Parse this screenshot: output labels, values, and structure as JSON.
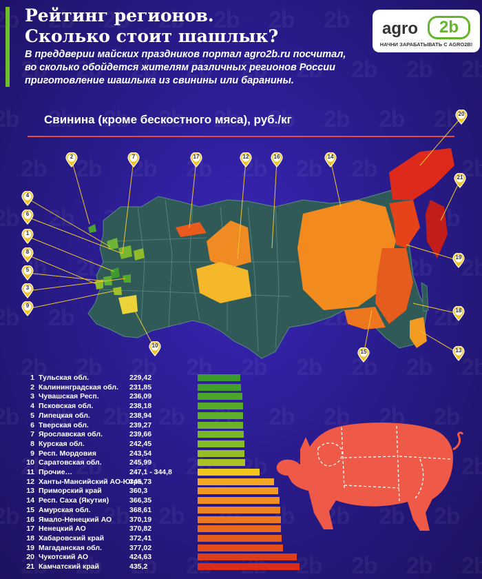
{
  "header": {
    "title_line1": "Рейтинг регионов.",
    "title_line2": "Сколько стоит шашлык?",
    "subtitle_line1": "В преддверии майских праздников портал agro2b.ru посчитал,",
    "subtitle_line2": "во сколько обойдется жителям различных регионов России",
    "subtitle_line3": "приготовление шашлыка из свинины или баранины."
  },
  "logo": {
    "part1": "agro",
    "part2": "2b",
    "tagline": "НАЧНИ ЗАРАБАТЫВАТЬ С AGRO2B!"
  },
  "section_label": "Свинина (кроме бескостного мяса), руб./кг",
  "colors": {
    "accent": "#6fbf2b",
    "base_region": "#2f5a57",
    "line": "#e74c3c"
  },
  "map_pins": [
    "1",
    "2",
    "3",
    "4",
    "5",
    "6",
    "7",
    "8",
    "9",
    "10",
    "12",
    "13",
    "14",
    "15",
    "16",
    "17",
    "18",
    "19",
    "20",
    "21"
  ],
  "chart_data": {
    "type": "bar",
    "categories": [
      "Тульская обл.",
      "Калининградская обл.",
      "Чувашская Респ.",
      "Псковская обл.",
      "Липецкая обл.",
      "Тверская обл.",
      "Ярославская обл.",
      "Курская обл.",
      "Респ. Мордовия",
      "Саратовская обл.",
      "Прочие…",
      "Ханты-Мансийский АО-Югра",
      "Приморский край",
      "Респ. Саха (Якутия)",
      "Амурская обл.",
      "Ямало-Ненецкий АО",
      "Ненецкий АО",
      "Хабаровский край",
      "Магаданская обл.",
      "Чукотский АО",
      "Камчатский край"
    ],
    "numbers": [
      "1",
      "2",
      "3",
      "4",
      "5",
      "6",
      "7",
      "8",
      "9",
      "10",
      "11",
      "12",
      "13",
      "14",
      "15",
      "16",
      "17",
      "18",
      "19",
      "20",
      "21"
    ],
    "value_labels": [
      "229,42",
      "231,85",
      "236,09",
      "238,18",
      "238,94",
      "239,27",
      "239,66",
      "242,45",
      "243,54",
      "245,99",
      "247,1 - 344,8",
      "345,73",
      "360,3",
      "366,35",
      "368,61",
      "370,19",
      "370,82",
      "372,41",
      "377,02",
      "424,63",
      "435,2"
    ],
    "values": [
      229.42,
      231.85,
      236.09,
      238.18,
      238.94,
      239.27,
      239.66,
      242.45,
      243.54,
      245.99,
      296,
      345.73,
      360.3,
      366.35,
      368.61,
      370.19,
      370.82,
      372.41,
      377.02,
      424.63,
      435.2
    ],
    "bar_colors": [
      "#3d9a2e",
      "#43a02c",
      "#4ba52b",
      "#55aa2a",
      "#5fae29",
      "#6bb228",
      "#78b627",
      "#87ba26",
      "#98be25",
      "#aac224",
      "#f2c51c",
      "#f5a623",
      "#f39a22",
      "#f08f20",
      "#ee841f",
      "#ec771e",
      "#e96a1d",
      "#e65c1c",
      "#e24d1b",
      "#de3d1a",
      "#da2c19"
    ]
  }
}
